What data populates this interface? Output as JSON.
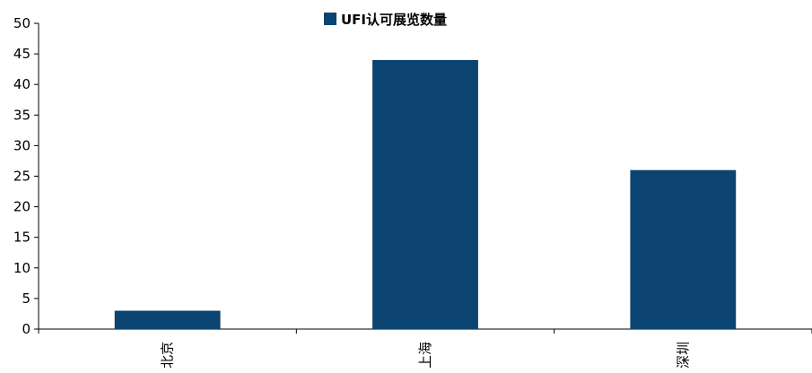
{
  "chart_data": {
    "type": "bar",
    "categories": [
      "北京",
      "上海",
      "深圳"
    ],
    "series": [
      {
        "name": "UFI认可展览数量",
        "values": [
          3,
          44,
          26
        ],
        "color": "#0b4470"
      }
    ],
    "ylim": [
      0,
      50
    ],
    "yticks": [
      0,
      5,
      10,
      15,
      20,
      25,
      30,
      35,
      40,
      45,
      50
    ],
    "grid": false,
    "legend_position": "top-center",
    "xlabel": "",
    "ylabel": "",
    "title": ""
  }
}
